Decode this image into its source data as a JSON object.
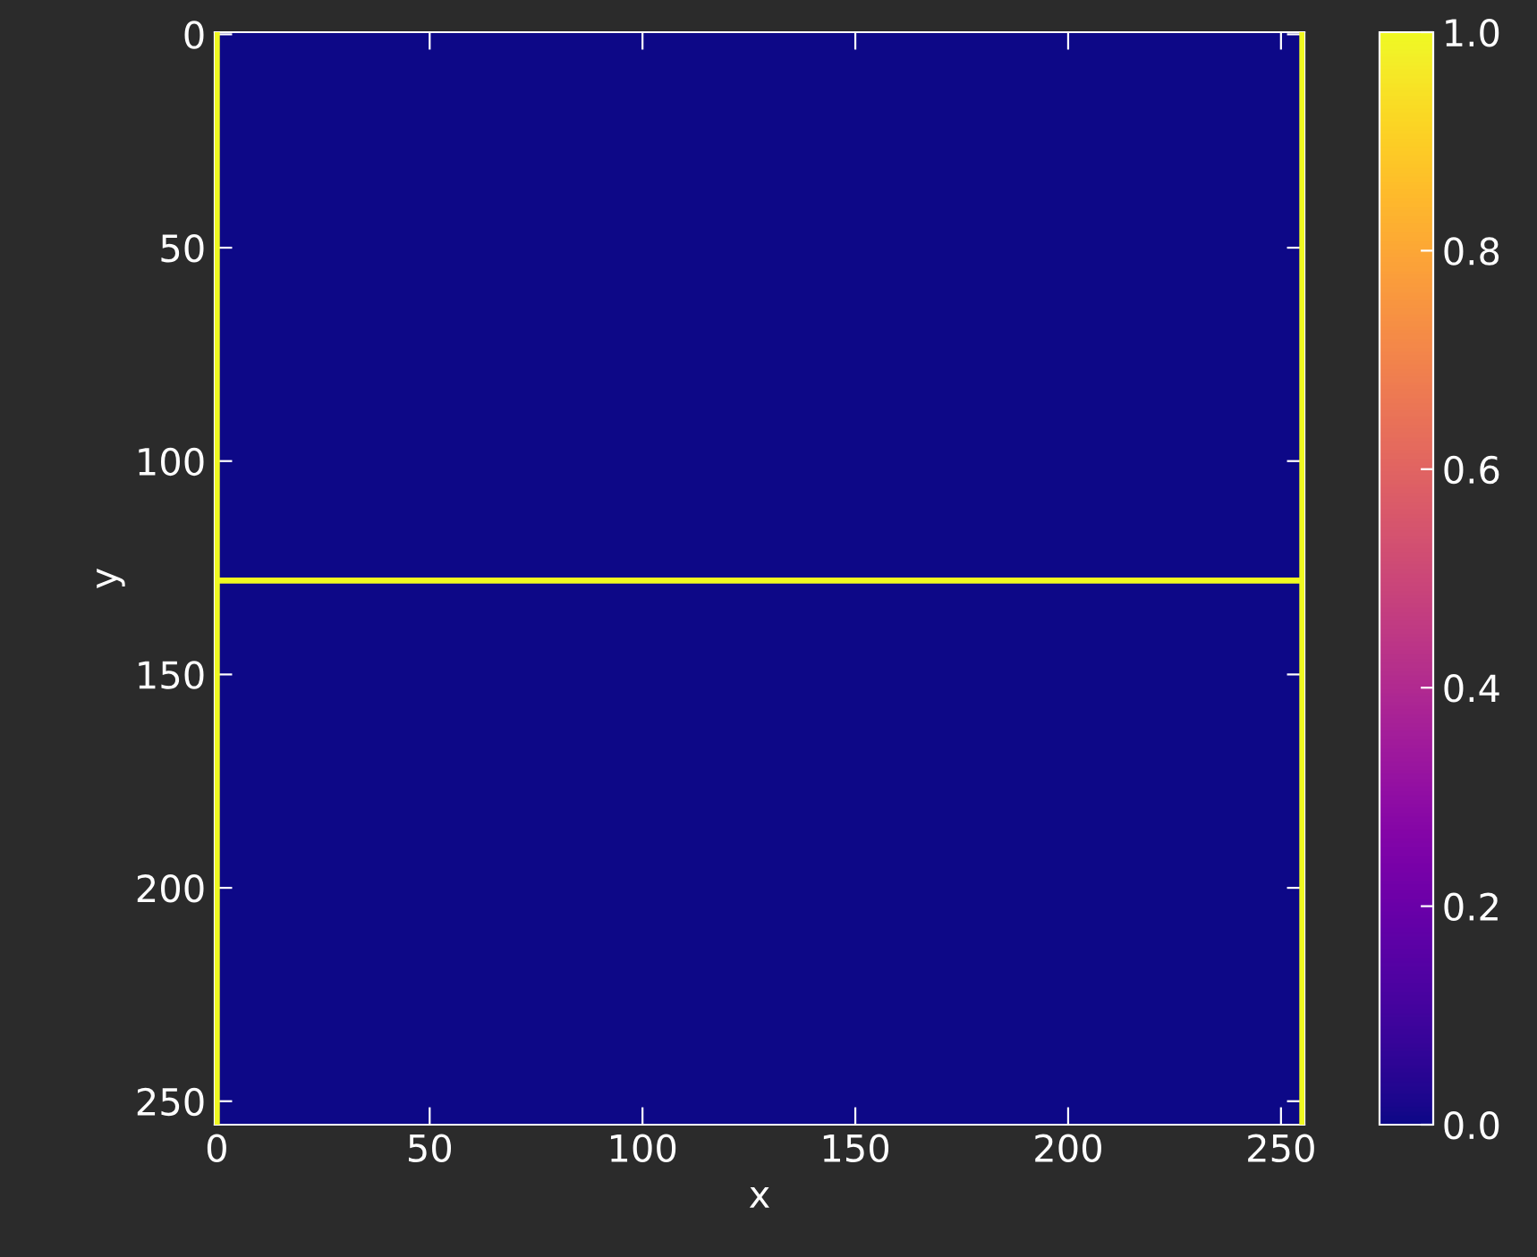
{
  "chart_data": {
    "type": "heatmap",
    "xlabel": "x",
    "ylabel": "y",
    "cells": [
      [
        0
      ]
    ],
    "xlim": [
      -0.5,
      255.5
    ],
    "ylim": [
      255.5,
      -0.5
    ],
    "xticks": [
      0,
      50,
      100,
      150,
      200,
      250
    ],
    "yticks": [
      0,
      50,
      100,
      150,
      200,
      250
    ],
    "clim": [
      0.0,
      1.0
    ],
    "cticks": [
      {
        "value": 0,
        "label": "0.0"
      },
      {
        "value": 0.2,
        "label": "0.2"
      },
      {
        "value": 0.4,
        "label": "0.4"
      },
      {
        "value": 0.6,
        "label": "0.6"
      },
      {
        "value": 0.8,
        "label": "0.8"
      },
      {
        "value": 1,
        "label": "1.0"
      }
    ],
    "ref_lines": [
      {
        "axis": "y",
        "value": 128,
        "color": "#f0f921"
      },
      {
        "axis": "x",
        "value": 0,
        "color": "#f0f921"
      },
      {
        "axis": "x",
        "value": 255,
        "color": "#f0f921"
      }
    ],
    "grid": false
  }
}
